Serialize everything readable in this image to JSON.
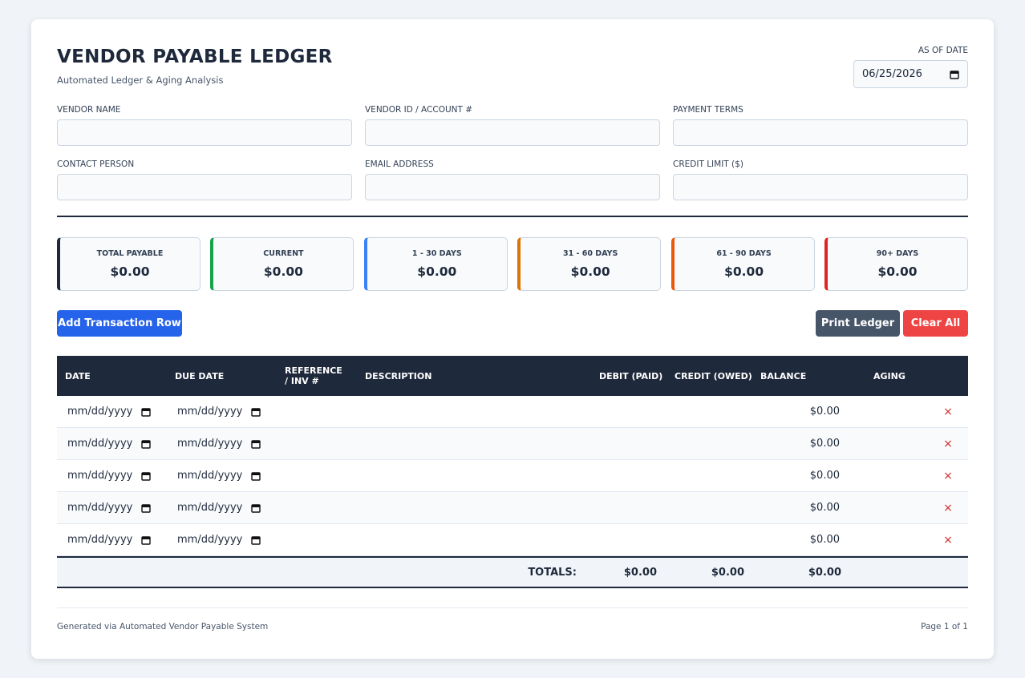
{
  "header": {
    "title": "VENDOR PAYABLE LEDGER",
    "subtitle": "Automated Ledger & Aging Analysis"
  },
  "as_of": {
    "label": "AS OF DATE",
    "value": "06/25/2026"
  },
  "fields": [
    {
      "label": "VENDOR NAME"
    },
    {
      "label": "VENDOR ID / ACCOUNT #"
    },
    {
      "label": "PAYMENT TERMS"
    },
    {
      "label": "CONTACT PERSON"
    },
    {
      "label": "EMAIL ADDRESS"
    },
    {
      "label": "CREDIT LIMIT ($)"
    }
  ],
  "summary": [
    {
      "label": "TOTAL PAYABLE",
      "value": "$0.00",
      "color": "#1e293b"
    },
    {
      "label": "CURRENT",
      "value": "$0.00",
      "color": "#16a34a"
    },
    {
      "label": "1 - 30 DAYS",
      "value": "$0.00",
      "color": "#3b82f6"
    },
    {
      "label": "31 - 60 DAYS",
      "value": "$0.00",
      "color": "#d97706"
    },
    {
      "label": "61 - 90 DAYS",
      "value": "$0.00",
      "color": "#ea580c"
    },
    {
      "label": "90+ DAYS",
      "value": "$0.00",
      "color": "#dc2626"
    }
  ],
  "actions": {
    "add": "Add Transaction Row",
    "print": "Print Ledger",
    "clear": "Clear All"
  },
  "table": {
    "columns": [
      "DATE",
      "DUE DATE",
      "REFERENCE / INV #",
      "DESCRIPTION",
      "DEBIT (PAID)",
      "CREDIT (OWED)",
      "BALANCE",
      "AGING"
    ],
    "rows": [
      {
        "date": "mm/dd/yyyy",
        "due_date": "mm/dd/yyyy",
        "balance": "$0.00",
        "remove": "×"
      },
      {
        "date": "mm/dd/yyyy",
        "due_date": "mm/dd/yyyy",
        "balance": "$0.00",
        "remove": "×"
      },
      {
        "date": "mm/dd/yyyy",
        "due_date": "mm/dd/yyyy",
        "balance": "$0.00",
        "remove": "×"
      },
      {
        "date": "mm/dd/yyyy",
        "due_date": "mm/dd/yyyy",
        "balance": "$0.00",
        "remove": "×"
      },
      {
        "date": "mm/dd/yyyy",
        "due_date": "mm/dd/yyyy",
        "balance": "$0.00",
        "remove": "×"
      }
    ],
    "totals": {
      "label": "TOTALS:",
      "debit": "$0.00",
      "credit": "$0.00",
      "balance": "$0.00"
    }
  },
  "footer": {
    "left": "Generated via Automated Vendor Payable System",
    "right": "Page 1 of 1"
  }
}
